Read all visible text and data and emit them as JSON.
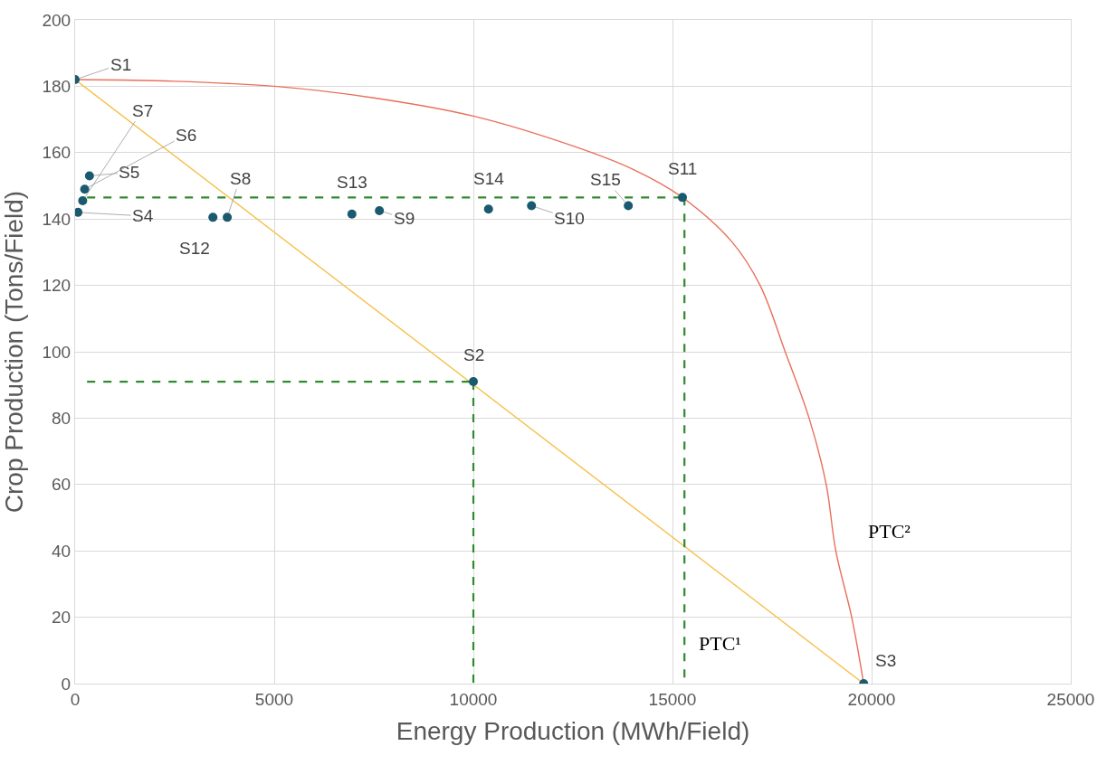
{
  "chart_data": {
    "type": "scatter",
    "xlabel": "Energy Production (MWh/Field)",
    "ylabel": "Crop Production (Tons/Field)",
    "xlim": [
      0,
      25000
    ],
    "xticks": [
      0,
      5000,
      10000,
      15000,
      20000,
      25000
    ],
    "ylim": [
      0,
      200
    ],
    "yticks": [
      0,
      20,
      40,
      60,
      80,
      100,
      120,
      140,
      160,
      180,
      200
    ],
    "grid": true,
    "series": [
      {
        "type": "line",
        "color": "#f5c04a",
        "x": [
          0,
          19800
        ],
        "values": [
          182,
          0
        ],
        "marker": "none",
        "line_style": "solid"
      },
      {
        "type": "line",
        "color": "#e8705a",
        "x": [
          0,
          2500,
          5000,
          7500,
          10000,
          12500,
          14000,
          15250,
          16500,
          17200,
          17830,
          18430,
          18860,
          19100,
          19500,
          19800
        ],
        "values": [
          182,
          181.5,
          180,
          176.5,
          171,
          162,
          155,
          146.5,
          133,
          120,
          100,
          80,
          60,
          40,
          20,
          0
        ],
        "marker": "none",
        "line_style": "solid"
      },
      {
        "type": "line",
        "color": "#2e8b2e",
        "x": [
          300,
          10000
        ],
        "values": [
          91,
          91
        ],
        "marker": "none",
        "line_style": "dashed"
      },
      {
        "type": "line",
        "color": "#2e8b2e",
        "x": [
          10000,
          10000
        ],
        "values": [
          91,
          0
        ],
        "marker": "none",
        "line_style": "dashed"
      },
      {
        "type": "line",
        "color": "#2e8b2e",
        "x": [
          300,
          15250
        ],
        "values": [
          146.5,
          146.5
        ],
        "marker": "none",
        "line_style": "dashed"
      },
      {
        "type": "line",
        "color": "#2e8b2e",
        "x": [
          15300,
          15300
        ],
        "values": [
          146.5,
          0
        ],
        "marker": "none",
        "line_style": "dashed"
      },
      {
        "color": "#1a5a6e",
        "marker": "circle",
        "x": [
          0,
          10000,
          19800,
          70,
          360,
          240,
          190,
          3820,
          7640,
          11460,
          15250,
          3460,
          6950,
          10380,
          13890
        ],
        "values": [
          182,
          91,
          0,
          142,
          153,
          149,
          145.5,
          140.5,
          142.5,
          144,
          146.5,
          140.5,
          141.5,
          143,
          144
        ]
      }
    ],
    "annotations": [
      {
        "text": "S1",
        "x": 0,
        "y": 182
      },
      {
        "text": "S2",
        "x": 10000,
        "y": 91
      },
      {
        "text": "S3",
        "x": 19800,
        "y": 0
      },
      {
        "text": "S4",
        "x": 70,
        "y": 142
      },
      {
        "text": "S5",
        "x": 360,
        "y": 153
      },
      {
        "text": "S6",
        "x": 240,
        "y": 149
      },
      {
        "text": "S7",
        "x": 190,
        "y": 145.5
      },
      {
        "text": "S8",
        "x": 3820,
        "y": 140.5
      },
      {
        "text": "S9",
        "x": 7640,
        "y": 142.5
      },
      {
        "text": "S10",
        "x": 11460,
        "y": 144
      },
      {
        "text": "S11",
        "x": 15250,
        "y": 146.5
      },
      {
        "text": "S12",
        "x": 3460,
        "y": 140.5
      },
      {
        "text": "S13",
        "x": 6950,
        "y": 141.5
      },
      {
        "text": "S14",
        "x": 10380,
        "y": 143
      },
      {
        "text": "S15",
        "x": 13890,
        "y": 144
      },
      {
        "text": "PTC¹",
        "x": 15300,
        "y": 12
      },
      {
        "text": "PTC²",
        "x": 19100,
        "y": 40
      }
    ]
  }
}
